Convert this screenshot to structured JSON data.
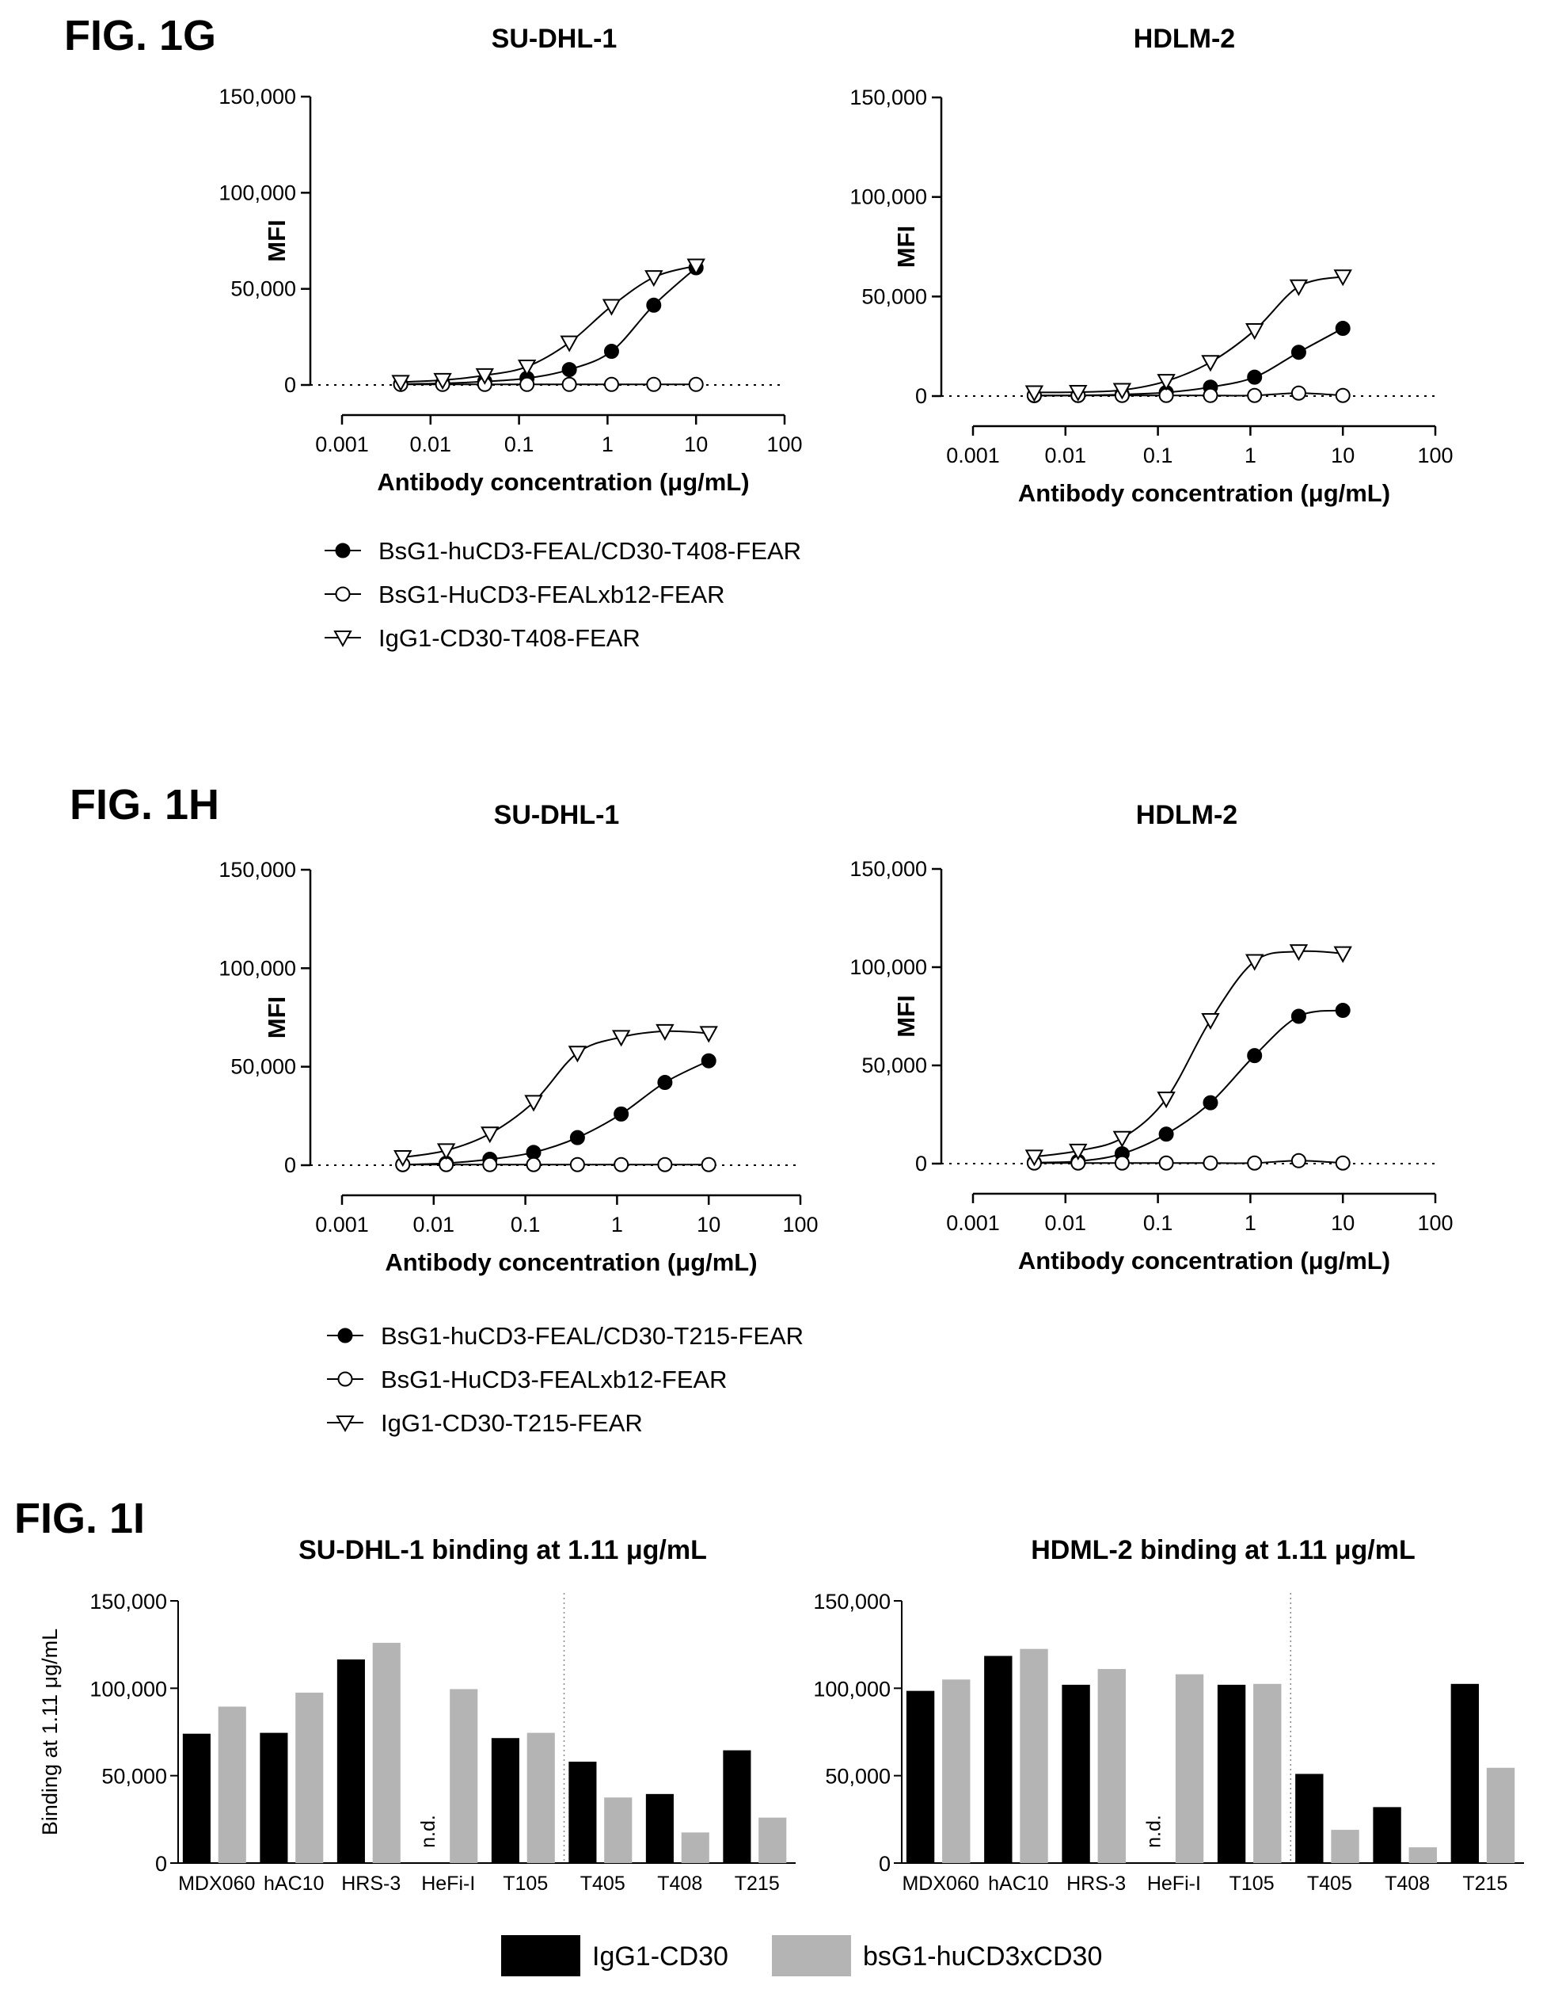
{
  "figures": {
    "g": "FIG. 1G",
    "h": "FIG. 1H",
    "i": "FIG. 1I"
  },
  "chart_data": [
    {
      "id": "g_sudhl1",
      "type": "line",
      "title": "SU-DHL-1",
      "xlabel": "Antibody concentration (μg/mL)",
      "ylabel": "MFI",
      "xscale": "log",
      "xlim": [
        0.001,
        100
      ],
      "xticks": [
        "0.001",
        "0.01",
        "0.1",
        "1",
        "10",
        "100"
      ],
      "ylim": [
        0,
        150000
      ],
      "yticks": [
        "0",
        "50,000",
        "100,000",
        "150,000"
      ],
      "baseline": "dotted line at 0",
      "x": [
        0.0046,
        0.0137,
        0.041,
        0.123,
        0.37,
        1.11,
        3.33,
        10
      ],
      "series": [
        {
          "name": "BsG1-huCD3-FEAL/CD30-T408-FEAR",
          "marker": "filled-circle",
          "values": [
            500,
            800,
            1800,
            3500,
            8000,
            17500,
            41500,
            61000
          ]
        },
        {
          "name": "BsG1-HuCD3-FEALxb12-FEAR",
          "marker": "open-circle",
          "values": [
            300,
            300,
            300,
            300,
            300,
            300,
            300,
            300
          ]
        },
        {
          "name": "IgG1-CD30-T408-FEAR",
          "marker": "open-triangle-down",
          "values": [
            1500,
            2500,
            5000,
            9500,
            22000,
            41000,
            56000,
            62000
          ]
        }
      ]
    },
    {
      "id": "g_hdlm2",
      "type": "line",
      "title": "HDLM-2",
      "xlabel": "Antibody concentration (μg/mL)",
      "ylabel": "MFI",
      "xscale": "log",
      "xlim": [
        0.001,
        100
      ],
      "xticks": [
        "0.001",
        "0.01",
        "0.1",
        "1",
        "10",
        "100"
      ],
      "ylim": [
        0,
        150000
      ],
      "yticks": [
        "0",
        "50,000",
        "100,000",
        "150,000"
      ],
      "baseline": "dotted line at 0",
      "x": [
        0.0046,
        0.0137,
        0.041,
        0.123,
        0.37,
        1.11,
        3.33,
        10
      ],
      "series": [
        {
          "name": "BsG1-huCD3-FEAL/CD30-T408-FEAR",
          "marker": "filled-circle",
          "values": [
            200,
            300,
            800,
            1800,
            4500,
            9500,
            22000,
            34000
          ]
        },
        {
          "name": "BsG1-HuCD3-FEALxb12-FEAR",
          "marker": "open-circle",
          "values": [
            300,
            300,
            300,
            300,
            300,
            300,
            1500,
            300
          ]
        },
        {
          "name": "IgG1-CD30-T408-FEAR",
          "marker": "open-triangle-down",
          "values": [
            1800,
            2000,
            3000,
            7500,
            17000,
            33000,
            55000,
            60000
          ]
        }
      ]
    },
    {
      "id": "h_sudhl1",
      "type": "line",
      "title": "SU-DHL-1",
      "xlabel": "Antibody concentration (μg/mL)",
      "ylabel": "MFI",
      "xscale": "log",
      "xlim": [
        0.001,
        100
      ],
      "xticks": [
        "0.001",
        "0.01",
        "0.1",
        "1",
        "10",
        "100"
      ],
      "ylim": [
        0,
        150000
      ],
      "yticks": [
        "0",
        "50,000",
        "100,000",
        "150,000"
      ],
      "baseline": "dotted line at 0",
      "x": [
        0.0046,
        0.0137,
        0.041,
        0.123,
        0.37,
        1.11,
        3.33,
        10
      ],
      "series": [
        {
          "name": "BsG1-huCD3-FEAL/CD30-T215-FEAR",
          "marker": "filled-circle",
          "values": [
            300,
            1000,
            3000,
            6500,
            14000,
            26000,
            42000,
            53000
          ]
        },
        {
          "name": "BsG1-HuCD3-FEALxb12-FEAR",
          "marker": "open-circle",
          "values": [
            300,
            300,
            300,
            300,
            300,
            300,
            300,
            300
          ]
        },
        {
          "name": "IgG1-CD30-T215-FEAR",
          "marker": "open-triangle-down",
          "values": [
            4000,
            7500,
            16000,
            32000,
            57000,
            65000,
            68000,
            67000
          ]
        }
      ]
    },
    {
      "id": "h_hdlm2",
      "type": "line",
      "title": "HDLM-2",
      "xlabel": "Antibody concentration (μg/mL)",
      "ylabel": "MFI",
      "xscale": "log",
      "xlim": [
        0.001,
        100
      ],
      "xticks": [
        "0.001",
        "0.01",
        "0.1",
        "1",
        "10",
        "100"
      ],
      "ylim": [
        0,
        150000
      ],
      "yticks": [
        "0",
        "50,000",
        "100,000",
        "150,000"
      ],
      "baseline": "dotted line at 0",
      "x": [
        0.0046,
        0.0137,
        0.041,
        0.123,
        0.37,
        1.11,
        3.33,
        10
      ],
      "series": [
        {
          "name": "BsG1-huCD3-FEAL/CD30-T215-FEAR",
          "marker": "filled-circle",
          "values": [
            500,
            1200,
            5000,
            15000,
            31000,
            55000,
            75000,
            78000
          ]
        },
        {
          "name": "BsG1-HuCD3-FEALxb12-FEAR",
          "marker": "open-circle",
          "values": [
            300,
            300,
            300,
            300,
            300,
            300,
            1500,
            300
          ]
        },
        {
          "name": "IgG1-CD30-T215-FEAR",
          "marker": "open-triangle-down",
          "values": [
            3500,
            6500,
            13000,
            33000,
            73000,
            103000,
            108000,
            107000
          ]
        }
      ]
    },
    {
      "id": "i_sudhl1",
      "type": "bar",
      "title": "SU-DHL-1 binding at 1.11 μg/mL",
      "xlabel": "",
      "ylabel": "Binding at 1.11 μg/mL",
      "ylim": [
        0,
        150000
      ],
      "yticks": [
        "0",
        "50,000",
        "100,000",
        "150,000"
      ],
      "categories": [
        "MDX060",
        "hAC10",
        "HRS-3",
        "HeFi-I",
        "T105",
        "T405",
        "T408",
        "T215"
      ],
      "divider_after": "T105",
      "na_label": "n.d.",
      "series": [
        {
          "name": "IgG1-CD30",
          "color": "#000000",
          "values": [
            74000,
            74500,
            116500,
            null,
            71500,
            58000,
            39500,
            64500
          ]
        },
        {
          "name": "bsG1-huCD3xCD30",
          "color": "#b4b4b4",
          "values": [
            89500,
            97500,
            126000,
            99500,
            74500,
            37500,
            17500,
            26000
          ]
        }
      ]
    },
    {
      "id": "i_hdml2",
      "type": "bar",
      "title": "HDML-2 binding at 1.11 μg/mL",
      "xlabel": "",
      "ylabel": "",
      "ylim": [
        0,
        150000
      ],
      "yticks": [
        "0",
        "50,000",
        "100,000",
        "150,000"
      ],
      "categories": [
        "MDX060",
        "hAC10",
        "HRS-3",
        "HeFi-I",
        "T105",
        "T405",
        "T408",
        "T215"
      ],
      "divider_after": "T105",
      "na_label": "n.d.",
      "series": [
        {
          "name": "IgG1-CD30",
          "color": "#000000",
          "values": [
            98500,
            118500,
            102000,
            null,
            102000,
            51000,
            32000,
            102500
          ]
        },
        {
          "name": "bsG1-huCD3xCD30",
          "color": "#b4b4b4",
          "values": [
            105000,
            122500,
            111000,
            108000,
            102500,
            19000,
            9000,
            54500
          ]
        }
      ]
    }
  ]
}
